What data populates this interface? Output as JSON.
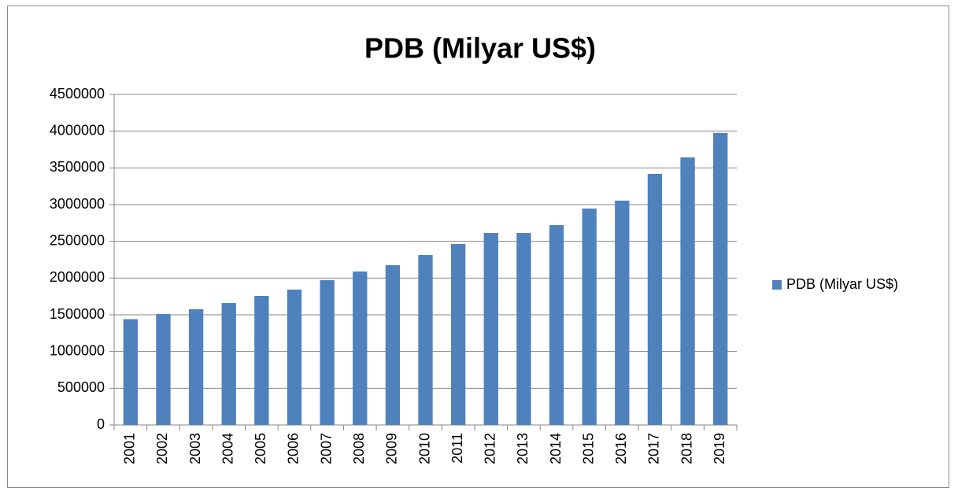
{
  "chart_data": {
    "type": "bar",
    "title": "PDB (Milyar US$)",
    "categories": [
      "2001",
      "2002",
      "2003",
      "2004",
      "2005",
      "2006",
      "2007",
      "2008",
      "2009",
      "2010",
      "2011",
      "2012",
      "2013",
      "2014",
      "2015",
      "2016",
      "2017",
      "2018",
      "2019"
    ],
    "series": [
      {
        "name": "PDB (Milyar US$)",
        "color": "#4f81bd",
        "values": [
          1440000,
          1510000,
          1575000,
          1660000,
          1757000,
          1843000,
          1971000,
          2089000,
          2175000,
          2314000,
          2464000,
          2614000,
          2614000,
          2721000,
          2946000,
          3054000,
          3418000,
          3643000,
          3975000
        ]
      }
    ],
    "ylim": [
      0,
      4500000
    ],
    "yticks": [
      0,
      500000,
      1000000,
      1500000,
      2000000,
      2500000,
      3000000,
      3500000,
      4000000,
      4500000
    ],
    "grid": true,
    "legend": "right"
  }
}
